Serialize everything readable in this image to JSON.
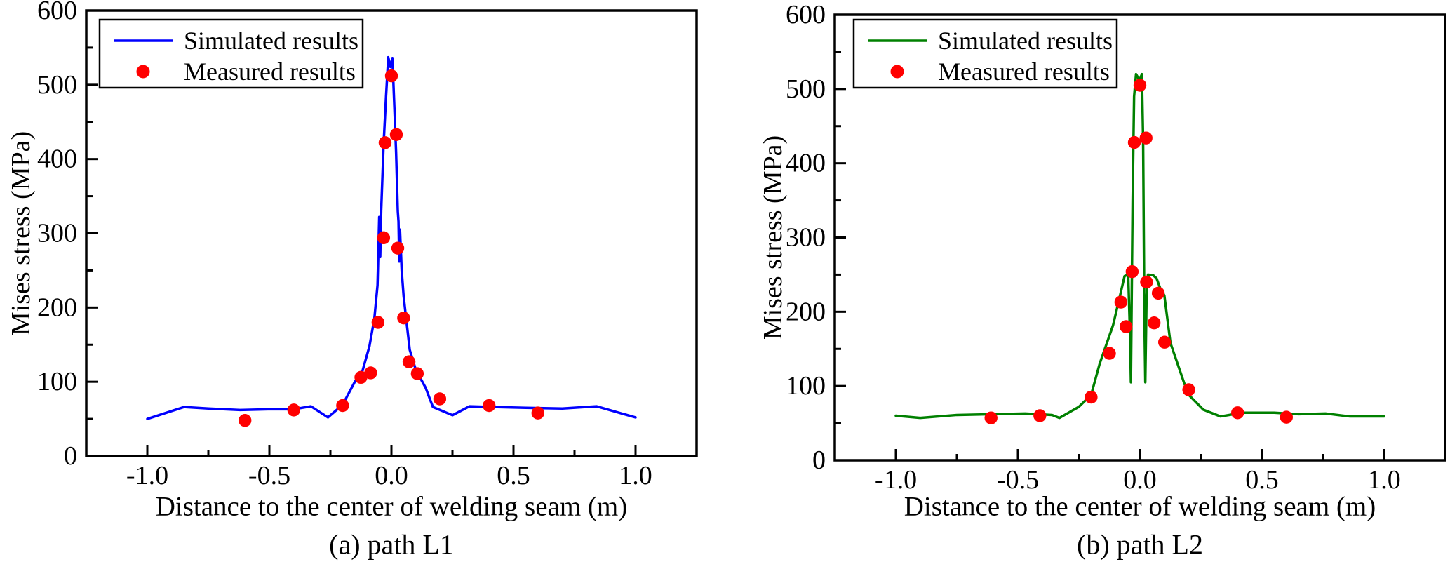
{
  "figure": {
    "description": "Comparison of simulated and measured Mises stress along two paths"
  },
  "chart_data": [
    {
      "type": "line",
      "panel": "a",
      "caption": "(a) path L1",
      "xlabel": "Distance to the center of welding seam (m)",
      "ylabel": "Mises stress (MPa)",
      "xlim": [
        -1.25,
        1.25
      ],
      "ylim": [
        0,
        600
      ],
      "grid": false,
      "legend_position": "top-left",
      "xtick_labels": [
        "-1.0",
        "-0.5",
        "0.0",
        "0.5",
        "1.0"
      ],
      "xticks_major": [
        -1.0,
        -0.5,
        0.0,
        0.5,
        1.0
      ],
      "xticks_minor": [
        -0.75,
        -0.25,
        0.25,
        0.75
      ],
      "ytick_labels": [
        "0",
        "100",
        "200",
        "300",
        "400",
        "500",
        "600"
      ],
      "yticks_major": [
        0,
        100,
        200,
        300,
        400,
        500,
        600
      ],
      "yticks_minor": [
        50,
        150,
        250,
        350,
        450,
        550
      ],
      "series": [
        {
          "name": "Simulated results",
          "type": "line",
          "color": "#0000ff",
          "points": [
            [
              -1.0,
              50
            ],
            [
              -0.85,
              66
            ],
            [
              -0.75,
              64
            ],
            [
              -0.62,
              62
            ],
            [
              -0.5,
              63
            ],
            [
              -0.4,
              63
            ],
            [
              -0.33,
              67
            ],
            [
              -0.26,
              52
            ],
            [
              -0.2,
              69
            ],
            [
              -0.15,
              100
            ],
            [
              -0.12,
              113
            ],
            [
              -0.09,
              148
            ],
            [
              -0.07,
              185
            ],
            [
              -0.057,
              230
            ],
            [
              -0.05,
              322
            ],
            [
              -0.046,
              268
            ],
            [
              -0.042,
              330
            ],
            [
              -0.032,
              420
            ],
            [
              -0.022,
              485
            ],
            [
              -0.013,
              537
            ],
            [
              -0.004,
              524
            ],
            [
              0.004,
              536
            ],
            [
              0.012,
              470
            ],
            [
              0.019,
              410
            ],
            [
              0.026,
              330
            ],
            [
              0.029,
              316
            ],
            [
              0.032,
              262
            ],
            [
              0.035,
              305
            ],
            [
              0.042,
              250
            ],
            [
              0.05,
              215
            ],
            [
              0.06,
              186
            ],
            [
              0.075,
              143
            ],
            [
              0.1,
              116
            ],
            [
              0.14,
              92
            ],
            [
              0.17,
              66
            ],
            [
              0.25,
              55
            ],
            [
              0.32,
              67
            ],
            [
              0.42,
              66
            ],
            [
              0.55,
              65
            ],
            [
              0.7,
              64
            ],
            [
              0.84,
              67
            ],
            [
              1.0,
              52
            ]
          ]
        },
        {
          "name": "Measured results",
          "type": "scatter",
          "color": "#ff0000",
          "points": [
            [
              -0.6,
              48
            ],
            [
              -0.4,
              62
            ],
            [
              -0.2,
              68
            ],
            [
              -0.125,
              106
            ],
            [
              -0.085,
              112
            ],
            [
              -0.055,
              180
            ],
            [
              -0.032,
              294
            ],
            [
              -0.026,
              422
            ],
            [
              0.0,
              512
            ],
            [
              0.02,
              433
            ],
            [
              0.026,
              280
            ],
            [
              0.05,
              186
            ],
            [
              0.072,
              127
            ],
            [
              0.106,
              111
            ],
            [
              0.198,
              77
            ],
            [
              0.4,
              68
            ],
            [
              0.6,
              58
            ]
          ]
        }
      ]
    },
    {
      "type": "line",
      "panel": "b",
      "caption": "(b) path L2",
      "xlabel": "Distance to the center of welding seam (m)",
      "ylabel": "Mises stress (MPa)",
      "xlim": [
        -1.25,
        1.25
      ],
      "ylim": [
        0,
        600
      ],
      "grid": false,
      "legend_position": "top-left",
      "xtick_labels": [
        "-1.0",
        "-0.5",
        "0.0",
        "0.5",
        "1.0"
      ],
      "xticks_major": [
        -1.0,
        -0.5,
        0.0,
        0.5,
        1.0
      ],
      "xticks_minor": [
        -0.75,
        -0.25,
        0.25,
        0.75
      ],
      "ytick_labels": [
        "0",
        "100",
        "200",
        "300",
        "400",
        "500",
        "600"
      ],
      "yticks_major": [
        0,
        100,
        200,
        300,
        400,
        500,
        600
      ],
      "yticks_minor": [
        50,
        150,
        250,
        350,
        450,
        550
      ],
      "series": [
        {
          "name": "Simulated results",
          "type": "line",
          "color": "#008000",
          "points": [
            [
              -1.0,
              60
            ],
            [
              -0.9,
              57
            ],
            [
              -0.75,
              61
            ],
            [
              -0.6,
              62
            ],
            [
              -0.47,
              63
            ],
            [
              -0.36,
              61
            ],
            [
              -0.33,
              57
            ],
            [
              -0.25,
              72
            ],
            [
              -0.2,
              88
            ],
            [
              -0.165,
              130
            ],
            [
              -0.11,
              182
            ],
            [
              -0.08,
              224
            ],
            [
              -0.063,
              248
            ],
            [
              -0.048,
              250
            ],
            [
              -0.04,
              160
            ],
            [
              -0.037,
              105
            ],
            [
              -0.03,
              350
            ],
            [
              -0.024,
              490
            ],
            [
              -0.016,
              520
            ],
            [
              -0.002,
              512
            ],
            [
              0.008,
              520
            ],
            [
              0.013,
              430
            ],
            [
              0.018,
              200
            ],
            [
              0.022,
              105
            ],
            [
              0.027,
              220
            ],
            [
              0.033,
              250
            ],
            [
              0.055,
              249
            ],
            [
              0.068,
              245
            ],
            [
              0.085,
              230
            ],
            [
              0.1,
              222
            ],
            [
              0.125,
              158
            ],
            [
              0.18,
              105
            ],
            [
              0.2,
              88
            ],
            [
              0.26,
              68
            ],
            [
              0.33,
              59
            ],
            [
              0.42,
              64
            ],
            [
              0.55,
              64
            ],
            [
              0.65,
              62
            ],
            [
              0.76,
              63
            ],
            [
              0.86,
              59
            ],
            [
              1.0,
              59
            ]
          ]
        },
        {
          "name": "Measured results",
          "type": "scatter",
          "color": "#ff0000",
          "points": [
            [
              -0.61,
              57
            ],
            [
              -0.41,
              60
            ],
            [
              -0.2,
              85
            ],
            [
              -0.125,
              144
            ],
            [
              -0.078,
              213
            ],
            [
              -0.057,
              180
            ],
            [
              -0.032,
              254
            ],
            [
              -0.023,
              428
            ],
            [
              0.0,
              505
            ],
            [
              0.025,
              434
            ],
            [
              0.027,
              240
            ],
            [
              0.058,
              185
            ],
            [
              0.075,
              225
            ],
            [
              0.101,
              159
            ],
            [
              0.2,
              95
            ],
            [
              0.4,
              64
            ],
            [
              0.6,
              58
            ]
          ]
        }
      ]
    }
  ]
}
